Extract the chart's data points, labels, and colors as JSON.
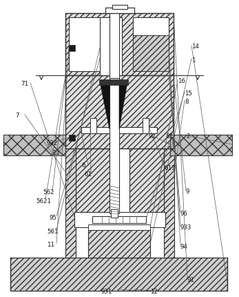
{
  "fig_width": 3.47,
  "fig_height": 4.31,
  "bg": "white",
  "lc": "#333333",
  "dark": "#1a1a1a",
  "grey": "#e0e0e0",
  "dgrey": "#c8c8c8",
  "labels": [
    [
      "931",
      155,
      423,
      "center"
    ],
    [
      "12",
      218,
      423,
      "left"
    ],
    [
      "91",
      272,
      406,
      "left"
    ],
    [
      "11",
      68,
      355,
      "left"
    ],
    [
      "94",
      262,
      358,
      "left"
    ],
    [
      "561",
      68,
      336,
      "left"
    ],
    [
      "933",
      262,
      330,
      "left"
    ],
    [
      "95",
      72,
      316,
      "left"
    ],
    [
      "96",
      262,
      310,
      "left"
    ],
    [
      "5621",
      52,
      292,
      "left"
    ],
    [
      "562",
      62,
      279,
      "left"
    ],
    [
      "9",
      270,
      278,
      "left"
    ],
    [
      "61",
      122,
      253,
      "left"
    ],
    [
      "6",
      118,
      240,
      "left"
    ],
    [
      "611",
      238,
      244,
      "left"
    ],
    [
      "11",
      76,
      222,
      "left"
    ],
    [
      "932",
      68,
      208,
      "left"
    ],
    [
      "92",
      216,
      198,
      "left"
    ],
    [
      "81",
      240,
      198,
      "left"
    ],
    [
      "2",
      270,
      198,
      "left"
    ],
    [
      "7",
      22,
      168,
      "left"
    ],
    [
      "8",
      268,
      148,
      "left"
    ],
    [
      "15",
      268,
      136,
      "left"
    ],
    [
      "71",
      30,
      122,
      "left"
    ],
    [
      "16",
      258,
      118,
      "left"
    ],
    [
      "1",
      278,
      88,
      "left"
    ],
    [
      "14",
      278,
      68,
      "left"
    ]
  ]
}
